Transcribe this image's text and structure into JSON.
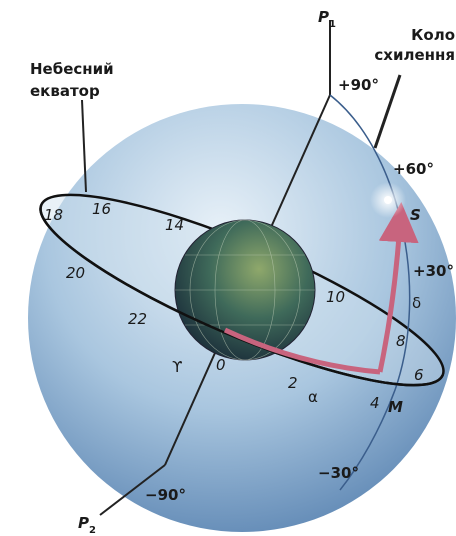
{
  "pole_north": {
    "letter": "P",
    "index": "1"
  },
  "pole_south": {
    "letter": "P",
    "index": "2"
  },
  "hour_circle_label": [
    "Коло",
    "схилення"
  ],
  "equator_label": [
    "Небесний",
    "екватор"
  ],
  "declination_marks": [
    "+90°",
    "+60°",
    "+30°",
    "−30°",
    "−90°"
  ],
  "star": "S",
  "point_m": "M",
  "delta": "δ",
  "alpha": "α",
  "aries": "ϒ",
  "hours": [
    "18",
    "16",
    "14",
    "20",
    "22",
    "0",
    "2",
    "4",
    "6",
    "8",
    "10"
  ]
}
